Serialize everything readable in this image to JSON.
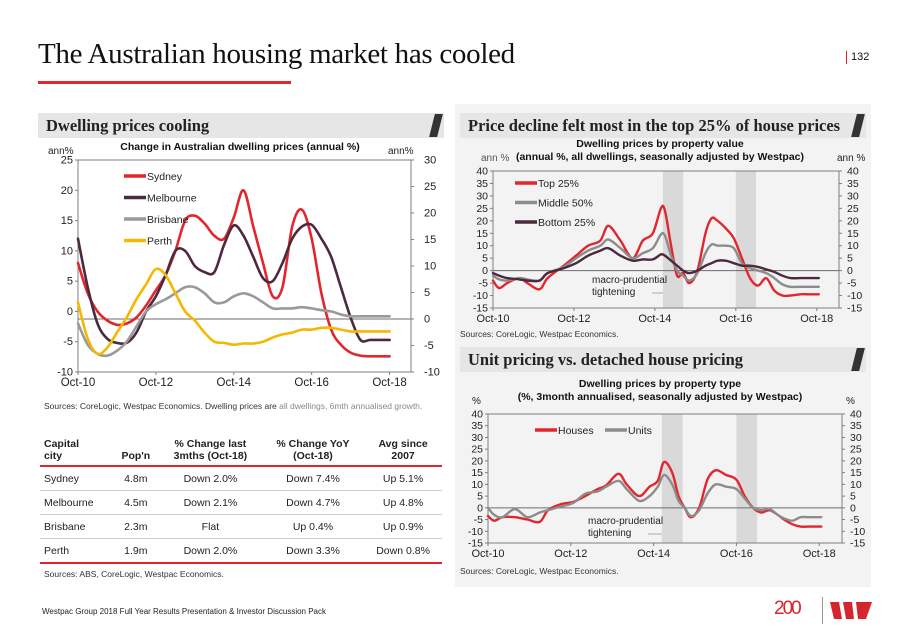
{
  "page": {
    "title": "The Australian housing market has cooled",
    "page_number": "132",
    "footer": "Westpac Group 2018 Full Year Results Presentation & Investor Discussion Pack",
    "logo_text": "200",
    "colors": {
      "accent": "#e3262e",
      "header_bg": "#e6e6e6",
      "panel_bg": "#f3f3f3"
    }
  },
  "sections": {
    "left": "Dwelling prices cooling",
    "right_top": "Price decline felt most in the top 25% of house prices",
    "right_bottom": "Unit pricing vs. detached house pricing"
  },
  "chart_data": [
    {
      "id": "city-prices",
      "type": "line",
      "title": "Change in Australian dwelling prices (annual %)",
      "ylabel_left": "ann%",
      "ylabel_right": "ann%",
      "ylim_left": [
        -10,
        25
      ],
      "ylim_right": [
        -10,
        30
      ],
      "yticks_left": [
        25,
        20,
        15,
        10,
        5,
        0,
        -5,
        -10
      ],
      "yticks_right": [
        30,
        25,
        20,
        15,
        10,
        5,
        0,
        -5,
        -10
      ],
      "xticks": [
        "Oct-10",
        "Oct-12",
        "Oct-14",
        "Oct-16",
        "Oct-18"
      ],
      "x_range": [
        2010.75,
        2019.3
      ],
      "zero_line_axis": "right",
      "legend_position": "top-left",
      "source": "Sources: CoreLogic, Westpac Economics. Dwelling prices are ",
      "source_light": "all dwellings, 6mth annualised growth.",
      "series": [
        {
          "name": "Sydney",
          "color": "#e3262e",
          "axis": "left",
          "x": [
            2010.75,
            2011.0,
            2011.25,
            2011.5,
            2011.75,
            2012.0,
            2012.25,
            2012.5,
            2012.75,
            2013.0,
            2013.25,
            2013.5,
            2013.75,
            2014.0,
            2014.25,
            2014.5,
            2014.75,
            2015.0,
            2015.25,
            2015.5,
            2015.75,
            2016.0,
            2016.25,
            2016.5,
            2016.75,
            2017.0,
            2017.25,
            2017.5,
            2017.75,
            2018.0,
            2018.25,
            2018.5,
            2018.75
          ],
          "y": [
            8,
            3,
            0,
            -1.5,
            -2.2,
            -2,
            -1,
            1,
            3.5,
            6,
            10,
            15,
            15.8,
            14.5,
            12.5,
            12,
            15.5,
            20,
            14,
            8,
            2.5,
            4,
            14,
            16.8,
            12,
            3,
            -3,
            -5.5,
            -6.8,
            -7.3,
            -7.4,
            -7.4,
            -7.4
          ]
        },
        {
          "name": "Melbourne",
          "color": "#4b2a3f",
          "axis": "left",
          "x": [
            2010.75,
            2011.0,
            2011.25,
            2011.5,
            2011.75,
            2012.0,
            2012.25,
            2012.5,
            2012.75,
            2013.0,
            2013.25,
            2013.5,
            2013.75,
            2014.0,
            2014.25,
            2014.5,
            2014.75,
            2015.0,
            2015.25,
            2015.5,
            2015.75,
            2016.0,
            2016.25,
            2016.5,
            2016.75,
            2017.0,
            2017.25,
            2017.5,
            2017.75,
            2018.0,
            2018.25,
            2018.5,
            2018.75
          ],
          "y": [
            12,
            4,
            -2,
            -4.5,
            -5.2,
            -5.2,
            -3.5,
            0,
            2.5,
            6,
            10,
            10,
            7.5,
            6.5,
            6.5,
            11,
            14.2,
            12.5,
            9,
            5.5,
            5,
            8,
            12,
            14,
            14.3,
            12,
            9,
            4,
            -1,
            -4.7,
            -4.7,
            -4.7,
            -4.7
          ]
        },
        {
          "name": "Brisbane",
          "color": "#999999",
          "axis": "left",
          "x": [
            2010.75,
            2011.0,
            2011.25,
            2011.5,
            2011.75,
            2012.0,
            2012.25,
            2012.5,
            2012.75,
            2013.0,
            2013.25,
            2013.5,
            2013.75,
            2014.0,
            2014.25,
            2014.5,
            2014.75,
            2015.0,
            2015.25,
            2015.5,
            2015.75,
            2016.0,
            2016.25,
            2016.5,
            2016.75,
            2017.0,
            2017.25,
            2017.5,
            2017.75,
            2018.0,
            2018.25,
            2018.5,
            2018.75
          ],
          "y": [
            -2,
            -5.5,
            -7,
            -7.3,
            -6.5,
            -5,
            -2.5,
            0,
            1.2,
            2,
            3,
            4,
            4,
            3,
            1.5,
            1.5,
            2.5,
            3,
            2.5,
            1.5,
            0.5,
            0.5,
            0.5,
            0.7,
            0.5,
            0.2,
            0,
            -0.5,
            -0.8,
            -0.8,
            -0.8,
            -0.8,
            -0.8
          ]
        },
        {
          "name": "Perth",
          "color": "#f5b800",
          "axis": "left",
          "x": [
            2010.75,
            2011.0,
            2011.25,
            2011.5,
            2011.75,
            2012.0,
            2012.25,
            2012.5,
            2012.75,
            2013.0,
            2013.25,
            2013.5,
            2013.75,
            2014.0,
            2014.25,
            2014.5,
            2014.75,
            2015.0,
            2015.25,
            2015.5,
            2015.75,
            2016.0,
            2016.25,
            2016.5,
            2016.75,
            2017.0,
            2017.25,
            2017.5,
            2017.75,
            2018.0,
            2018.25,
            2018.5,
            2018.75
          ],
          "y": [
            1.5,
            -4.5,
            -7,
            -6,
            -3.5,
            -1,
            2,
            4.5,
            7,
            6,
            3,
            0,
            -1.5,
            -3.5,
            -5,
            -5.2,
            -5.5,
            -5.3,
            -5.3,
            -5,
            -4.3,
            -3.8,
            -3.5,
            -3,
            -3,
            -2.7,
            -2.7,
            -3,
            -3.3,
            -3.3,
            -3.3,
            -3.3,
            -3.3
          ]
        }
      ]
    },
    {
      "id": "property-value",
      "type": "line",
      "title": "Dwelling prices by property value",
      "subtitle": "(annual %, all dwellings, seasonally adjusted by Westpac)",
      "ylabel_left": "ann %",
      "ylabel_right": "ann %",
      "ylim": [
        -15,
        40
      ],
      "yticks": [
        40,
        35,
        30,
        25,
        20,
        15,
        10,
        5,
        0,
        -5,
        -10,
        -15
      ],
      "xticks": [
        "Oct-10",
        "Oct-12",
        "Oct-14",
        "Oct-16",
        "Oct-18"
      ],
      "x_range": [
        2010.75,
        2019.3
      ],
      "shaded_periods": [
        [
          2014.95,
          2015.45
        ],
        [
          2016.75,
          2017.25
        ]
      ],
      "annotation": [
        "macro-prudential",
        "tightening"
      ],
      "legend_position": "top-left",
      "source": "Sources: CoreLogic, Westpac Economics.",
      "series": [
        {
          "name": "Top 25%",
          "color": "#e3262e",
          "x": [
            2010.75,
            2010.9,
            2011.1,
            2011.4,
            2011.6,
            2011.9,
            2012.1,
            2012.5,
            2012.8,
            2013.1,
            2013.4,
            2013.6,
            2013.9,
            2014.2,
            2014.45,
            2014.7,
            2014.9,
            2015.0,
            2015.15,
            2015.3,
            2015.45,
            2015.6,
            2015.8,
            2016.0,
            2016.15,
            2016.3,
            2016.5,
            2016.7,
            2016.9,
            2017.1,
            2017.3,
            2017.5,
            2017.7,
            2017.9,
            2018.1,
            2018.35,
            2018.55,
            2018.8
          ],
          "y": [
            -4,
            -7,
            -5,
            -3,
            -5,
            -7.5,
            -3,
            2,
            6,
            10,
            12,
            18,
            12,
            5,
            12,
            15,
            25,
            24,
            10,
            -2,
            -1,
            -5,
            0,
            15,
            21,
            20,
            17,
            13,
            5,
            -3,
            -6,
            -3,
            -8,
            -10,
            -10,
            -9.5,
            -9.5,
            -9.5
          ]
        },
        {
          "name": "Middle 50%",
          "color": "#8c8c8c",
          "x": [
            2010.75,
            2010.9,
            2011.1,
            2011.4,
            2011.6,
            2011.9,
            2012.1,
            2012.5,
            2012.8,
            2013.1,
            2013.4,
            2013.6,
            2013.9,
            2014.2,
            2014.45,
            2014.7,
            2014.9,
            2015.0,
            2015.15,
            2015.3,
            2015.45,
            2015.6,
            2015.8,
            2016.0,
            2016.15,
            2016.3,
            2016.5,
            2016.7,
            2016.9,
            2017.1,
            2017.3,
            2017.5,
            2017.7,
            2017.9,
            2018.1,
            2018.35,
            2018.55,
            2018.8
          ],
          "y": [
            -2,
            -3.5,
            -4,
            -3,
            -3.5,
            -4,
            -1,
            1.5,
            5,
            8,
            10,
            12.5,
            9,
            5,
            7,
            9,
            14.5,
            14,
            6,
            0,
            -2,
            -4,
            -1,
            7,
            10.5,
            10,
            10,
            9,
            3,
            1,
            0,
            -1,
            -3,
            -5.5,
            -6.5,
            -6.5,
            -6.5,
            -6.5
          ]
        },
        {
          "name": "Bottom 25%",
          "color": "#4b2a3f",
          "x": [
            2010.75,
            2010.9,
            2011.1,
            2011.4,
            2011.6,
            2011.9,
            2012.1,
            2012.5,
            2012.8,
            2013.1,
            2013.4,
            2013.6,
            2013.9,
            2014.2,
            2014.45,
            2014.7,
            2014.9,
            2015.0,
            2015.15,
            2015.3,
            2015.45,
            2015.6,
            2015.8,
            2016.0,
            2016.15,
            2016.3,
            2016.5,
            2016.7,
            2016.9,
            2017.1,
            2017.3,
            2017.5,
            2017.7,
            2017.9,
            2018.1,
            2018.35,
            2018.55,
            2018.8
          ],
          "y": [
            -1,
            -2,
            -3,
            -3.5,
            -4,
            -4,
            -1,
            1,
            3,
            6,
            8,
            9,
            6,
            4,
            4.5,
            4.5,
            6.5,
            6,
            4,
            2,
            0,
            -1,
            0,
            2,
            3,
            4,
            4,
            3,
            2,
            2,
            1.5,
            0.5,
            -0.5,
            -2,
            -3,
            -3,
            -3,
            -3
          ]
        }
      ]
    },
    {
      "id": "property-type",
      "type": "line",
      "title": "Dwelling prices by property type",
      "subtitle": "(%, 3month annualised, seasonally adjusted by Westpac)",
      "ylabel_left": "%",
      "ylabel_right": "%",
      "ylim": [
        -15,
        40
      ],
      "yticks": [
        40,
        35,
        30,
        25,
        20,
        15,
        10,
        5,
        0,
        -5,
        -10,
        -15
      ],
      "xticks": [
        "Oct-10",
        "Oct-12",
        "Oct-14",
        "Oct-16",
        "Oct-18"
      ],
      "x_range": [
        2010.75,
        2019.3
      ],
      "shaded_periods": [
        [
          2014.95,
          2015.45
        ],
        [
          2016.75,
          2017.25
        ]
      ],
      "annotation": [
        "macro-prudential",
        "tightening"
      ],
      "legend_position": "top",
      "source": "Sources: CoreLogic, Westpac Economics.",
      "series": [
        {
          "name": "Houses",
          "color": "#e3262e",
          "x": [
            2010.75,
            2010.9,
            2011.1,
            2011.4,
            2011.7,
            2012.0,
            2012.2,
            2012.5,
            2012.8,
            2013.1,
            2013.4,
            2013.6,
            2013.9,
            2014.1,
            2014.4,
            2014.65,
            2014.85,
            2015.0,
            2015.2,
            2015.35,
            2015.5,
            2015.65,
            2015.85,
            2016.05,
            2016.25,
            2016.5,
            2016.75,
            2016.95,
            2017.15,
            2017.35,
            2017.55,
            2017.75,
            2017.9,
            2018.1,
            2018.3,
            2018.5,
            2018.8
          ],
          "y": [
            -3.5,
            -5.5,
            -4,
            -4,
            -5,
            -6,
            -1,
            1.5,
            2.5,
            5,
            8,
            9.5,
            14.5,
            10,
            5,
            9,
            11.5,
            19.5,
            15,
            5,
            0,
            -4,
            0,
            12,
            16,
            14,
            12,
            5,
            0,
            -2,
            -1,
            -3,
            -5,
            -7,
            -8,
            -8,
            -8
          ]
        },
        {
          "name": "Units",
          "color": "#8c8c8c",
          "x": [
            2010.75,
            2010.9,
            2011.1,
            2011.4,
            2011.7,
            2012.0,
            2012.2,
            2012.5,
            2012.8,
            2013.1,
            2013.4,
            2013.6,
            2013.9,
            2014.1,
            2014.4,
            2014.65,
            2014.85,
            2015.0,
            2015.2,
            2015.35,
            2015.5,
            2015.65,
            2015.85,
            2016.05,
            2016.25,
            2016.5,
            2016.75,
            2016.95,
            2017.15,
            2017.35,
            2017.55,
            2017.75,
            2017.9,
            2018.1,
            2018.3,
            2018.5,
            2018.8
          ],
          "y": [
            0,
            -3,
            -4,
            -0.5,
            -4,
            -2,
            -1,
            0.5,
            2,
            6,
            7,
            9,
            11.5,
            8,
            3,
            5,
            9,
            14,
            10,
            3,
            0,
            -3.5,
            -1,
            6,
            10,
            9,
            8,
            4,
            0,
            -1,
            -0.5,
            -3,
            -4.5,
            -5.5,
            -4,
            -4,
            -4
          ]
        }
      ]
    }
  ],
  "table": {
    "headers": [
      [
        "Capital",
        "city"
      ],
      [
        "",
        "Pop'n"
      ],
      [
        "% Change last",
        "3mths (Oct-18)"
      ],
      [
        "% Change YoY",
        "(Oct-18)"
      ],
      [
        "Avg since",
        "2007"
      ]
    ],
    "rows": [
      [
        "Sydney",
        "4.8m",
        "Down 2.0%",
        "Down 7.4%",
        "Up 5.1%"
      ],
      [
        "Melbourne",
        "4.5m",
        "Down 2.1%",
        "Down 4.7%",
        "Up 4.8%"
      ],
      [
        "Brisbane",
        "2.3m",
        "Flat",
        "Up 0.4%",
        "Up 0.9%"
      ],
      [
        "Perth",
        "1.9m",
        "Down 2.0%",
        "Down 3.3%",
        "Down 0.8%"
      ]
    ],
    "source": "Sources: ABS, CoreLogic, Westpac Economics."
  }
}
